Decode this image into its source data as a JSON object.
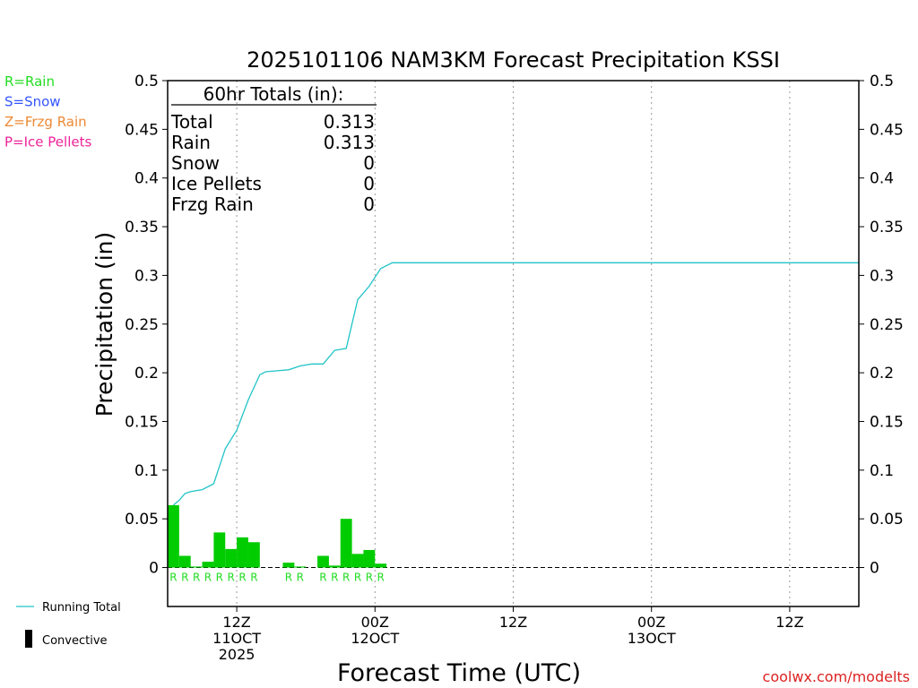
{
  "chart_data": {
    "type": "bar",
    "title": "2025101106 NAM3KM Forecast Precipitation KSSI",
    "xlabel": "Forecast Time (UTC)",
    "ylabel": "Precipitation (in)",
    "ylim": [
      -0.04,
      0.5
    ],
    "yticks": [
      0,
      0.05,
      0.1,
      0.15,
      0.2,
      0.25,
      0.3,
      0.35,
      0.4,
      0.45,
      0.5
    ],
    "ytick_labels": [
      "0",
      "0.05",
      "0.1",
      "0.15",
      "0.2",
      "0.25",
      "0.3",
      "0.35",
      "0.4",
      "0.45",
      "0.5"
    ],
    "xlim_hours": [
      0,
      60
    ],
    "grid": "vertical dotted at 12-hour ticks",
    "xticks": [
      {
        "hour": 6,
        "lines": [
          "12Z",
          "11OCT",
          "2025"
        ]
      },
      {
        "hour": 18,
        "lines": [
          "00Z",
          "12OCT"
        ]
      },
      {
        "hour": 30,
        "lines": [
          "12Z"
        ]
      },
      {
        "hour": 42,
        "lines": [
          "00Z",
          "13OCT"
        ]
      },
      {
        "hour": 54,
        "lines": [
          "12Z"
        ]
      }
    ],
    "series": [
      {
        "name": "Convective",
        "kind": "bar",
        "color": "#00cc00",
        "bars": [
          {
            "hour": 1,
            "value": 0.064,
            "ptype": "R"
          },
          {
            "hour": 2,
            "value": 0.012,
            "ptype": "R"
          },
          {
            "hour": 3,
            "value": 0.001,
            "ptype": "R"
          },
          {
            "hour": 4,
            "value": 0.006,
            "ptype": "R"
          },
          {
            "hour": 5,
            "value": 0.036,
            "ptype": "R"
          },
          {
            "hour": 6,
            "value": 0.019,
            "ptype": "R"
          },
          {
            "hour": 7,
            "value": 0.031,
            "ptype": "R"
          },
          {
            "hour": 8,
            "value": 0.026,
            "ptype": "R"
          },
          {
            "hour": 9,
            "value": 0.0,
            "ptype": ""
          },
          {
            "hour": 10,
            "value": 0.0,
            "ptype": ""
          },
          {
            "hour": 11,
            "value": 0.005,
            "ptype": "R"
          },
          {
            "hour": 12,
            "value": 0.001,
            "ptype": "R"
          },
          {
            "hour": 13,
            "value": 0.0,
            "ptype": ""
          },
          {
            "hour": 14,
            "value": 0.012,
            "ptype": "R"
          },
          {
            "hour": 15,
            "value": 0.002,
            "ptype": "R"
          },
          {
            "hour": 16,
            "value": 0.05,
            "ptype": "R"
          },
          {
            "hour": 17,
            "value": 0.014,
            "ptype": "R"
          },
          {
            "hour": 18,
            "value": 0.018,
            "ptype": "R"
          },
          {
            "hour": 19,
            "value": 0.004,
            "ptype": "R"
          }
        ]
      },
      {
        "name": "Running Total",
        "kind": "line",
        "color": "#22c4c8",
        "points": [
          [
            0.5,
            0.064
          ],
          [
            1,
            0.069
          ],
          [
            1.5,
            0.076
          ],
          [
            2,
            0.078
          ],
          [
            3,
            0.08
          ],
          [
            4,
            0.086
          ],
          [
            5,
            0.122
          ],
          [
            6,
            0.141
          ],
          [
            7,
            0.172
          ],
          [
            8,
            0.198
          ],
          [
            8.5,
            0.201
          ],
          [
            9.5,
            0.202
          ],
          [
            10.5,
            0.203
          ],
          [
            11.5,
            0.207
          ],
          [
            12.5,
            0.209
          ],
          [
            13.5,
            0.209
          ],
          [
            14.5,
            0.223
          ],
          [
            15.5,
            0.225
          ],
          [
            16.5,
            0.275
          ],
          [
            17.5,
            0.289
          ],
          [
            18.5,
            0.307
          ],
          [
            19.5,
            0.313
          ],
          [
            60,
            0.313
          ]
        ]
      }
    ],
    "totals_box": {
      "header": "60hr Totals (in):",
      "rows": [
        {
          "label": "Total",
          "value": "0.313"
        },
        {
          "label": "Rain",
          "value": "0.313"
        },
        {
          "label": "Snow",
          "value": "0"
        },
        {
          "label": "Ice Pellets",
          "value": "0"
        },
        {
          "label": "Frzg Rain",
          "value": "0"
        }
      ]
    },
    "ptype_key": [
      {
        "text": "R=Rain",
        "color": "#22dd22"
      },
      {
        "text": "S=Snow",
        "color": "#3355ff"
      },
      {
        "text": "Z=Frzg Rain",
        "color": "#ee8833"
      },
      {
        "text": "P=Ice Pellets",
        "color": "#ee2299"
      }
    ],
    "legend": [
      {
        "name": "Running Total",
        "symbol": "line",
        "color": "#22c4c8"
      },
      {
        "name": "Convective",
        "symbol": "bar",
        "color": "#000000"
      }
    ]
  },
  "credit": "coolwx.com/modelts",
  "colors": {
    "credit": "#dd2222",
    "axis": "#000000",
    "grid": "#999999"
  }
}
